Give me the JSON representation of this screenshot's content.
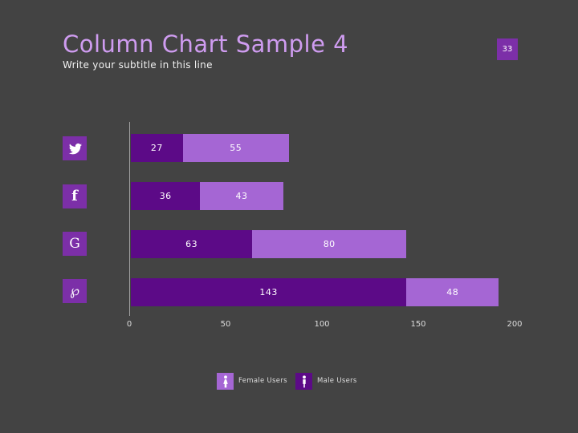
{
  "slide": {
    "title": "Column Chart Sample 4",
    "subtitle": "Write your subtitle in this line",
    "page_number": "33"
  },
  "colors": {
    "background": "#434343",
    "title_text": "#cf9cf0",
    "accent_box": "#7c2fa8",
    "dark_segment": "#5c0a87",
    "light_segment": "#a566d4",
    "axis_line": "#9f9f9f"
  },
  "icons": [
    {
      "name": "twitter-icon"
    },
    {
      "name": "facebook-icon",
      "glyph": "f"
    },
    {
      "name": "google-icon",
      "glyph": "G"
    },
    {
      "name": "pinterest-icon",
      "glyph": "℘"
    }
  ],
  "chart_data": {
    "type": "bar",
    "orientation": "horizontal-stacked",
    "categories": [
      "Twitter",
      "Facebook",
      "Google",
      "Pinterest"
    ],
    "series": [
      {
        "name": "Male Users",
        "color": "#5c0a87",
        "values": [
          27,
          36,
          63,
          143
        ]
      },
      {
        "name": "Female Users",
        "color": "#a566d4",
        "values": [
          55,
          43,
          80,
          48
        ]
      }
    ],
    "x_ticks": [
      0,
      50,
      100,
      150,
      200
    ],
    "xlim": [
      0,
      200
    ],
    "grid": false,
    "legend_position": "bottom",
    "legend": [
      {
        "label": "Female Users",
        "color": "#a566d4",
        "icon": "female-person-icon"
      },
      {
        "label": "Male Users",
        "color": "#5c0a87",
        "icon": "male-person-icon"
      }
    ]
  }
}
